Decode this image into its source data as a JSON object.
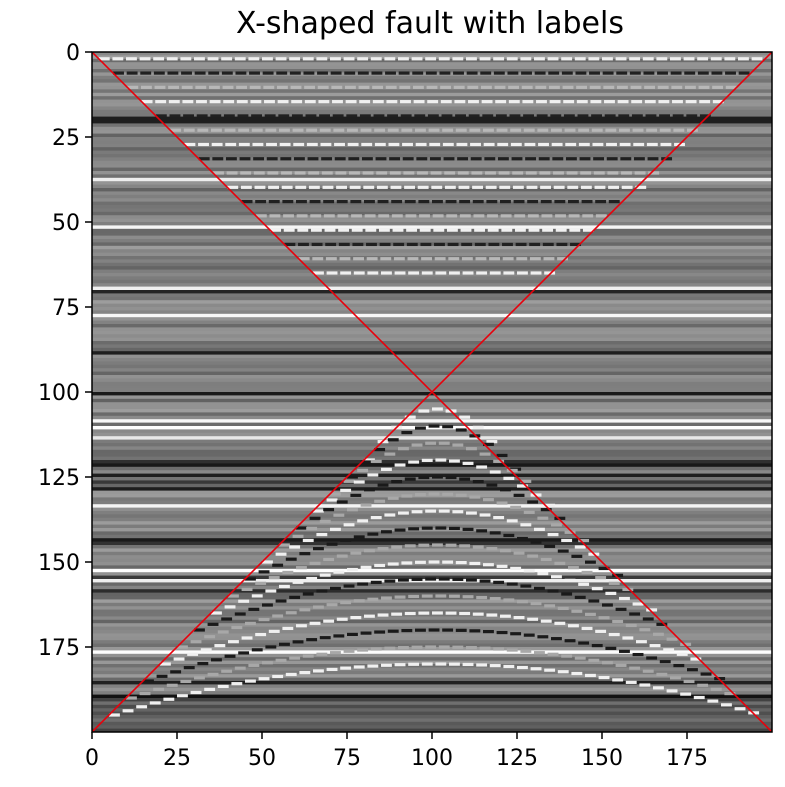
{
  "chart_data": {
    "type": "heatmap",
    "title": "X-shaped fault with labels",
    "xlabel": "",
    "ylabel": "",
    "xlim": [
      0,
      200
    ],
    "ylim": [
      200,
      0
    ],
    "x_ticks": [
      "0",
      "25",
      "50",
      "75",
      "100",
      "125",
      "150",
      "175"
    ],
    "y_ticks": [
      "0",
      "25",
      "50",
      "75",
      "100",
      "125",
      "150",
      "175"
    ],
    "colormap": "gray",
    "grid": false,
    "fault_lines": [
      {
        "x": [
          0,
          200
        ],
        "y": [
          0,
          200
        ],
        "color": "#e8000b"
      },
      {
        "x": [
          0,
          200
        ],
        "y": [
          200,
          0
        ],
        "color": "#e8000b"
      }
    ],
    "colors": {
      "background_gray": "#7f7f7f",
      "fault_line": "#e8000b"
    }
  }
}
